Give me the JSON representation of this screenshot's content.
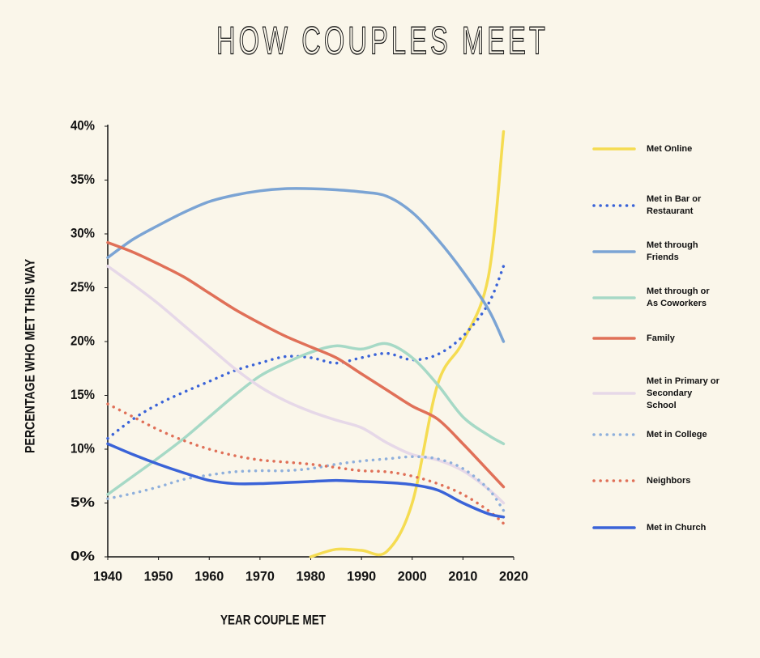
{
  "chart_data": {
    "type": "line",
    "title": "HOW COUPLES MEET",
    "x_label": "YEAR COUPLE MET",
    "y_label": "PERCENTAGE WHO MET THIS WAY",
    "x": [
      1940,
      1945,
      1950,
      1955,
      1960,
      1965,
      1970,
      1975,
      1980,
      1985,
      1990,
      1995,
      2000,
      2005,
      2010,
      2015,
      2018
    ],
    "xlim": [
      1940,
      2020
    ],
    "xticks": [
      1940,
      1950,
      1960,
      1970,
      1980,
      1990,
      2000,
      2010,
      2020
    ],
    "ylim": [
      0,
      40
    ],
    "yticks": [
      {
        "value": 0,
        "label": "0%"
      },
      {
        "value": 5,
        "label": "5%"
      },
      {
        "value": 10,
        "label": "10%"
      },
      {
        "value": 15,
        "label": "15%"
      },
      {
        "value": 20,
        "label": "20%"
      },
      {
        "value": 25,
        "label": "25%"
      },
      {
        "value": 30,
        "label": "30%"
      },
      {
        "value": 35,
        "label": "35%"
      },
      {
        "value": 40,
        "label": "40%"
      }
    ],
    "series": [
      {
        "name": "Met Online",
        "color": "#f5dc52",
        "style": "solid",
        "values": [
          null,
          null,
          null,
          null,
          null,
          null,
          null,
          null,
          0,
          0.7,
          0.6,
          0.5,
          5,
          16,
          20,
          26,
          39.5
        ]
      },
      {
        "name": "Met in Bar or Restaurant",
        "color": "#3a63d8",
        "style": "dotted",
        "values": [
          11,
          12.8,
          14.2,
          15.3,
          16.3,
          17.3,
          18,
          18.6,
          18.5,
          18,
          18.5,
          18.9,
          18.3,
          18.8,
          20.5,
          23.5,
          27
        ]
      },
      {
        "name": "Met through Friends",
        "color": "#7ba4d4",
        "style": "solid",
        "values": [
          27.8,
          29.5,
          30.8,
          32,
          33,
          33.6,
          34,
          34.2,
          34.2,
          34.1,
          33.9,
          33.5,
          32,
          29.5,
          26.5,
          23,
          20
        ]
      },
      {
        "name": "Met through or As Coworkers",
        "color": "#a6d9c6",
        "style": "solid",
        "values": [
          5.8,
          7.5,
          9.2,
          11,
          13,
          15,
          16.8,
          18,
          19,
          19.6,
          19.3,
          19.8,
          18.5,
          16,
          13,
          11.3,
          10.5
        ]
      },
      {
        "name": "Family",
        "color": "#e07058",
        "style": "solid",
        "values": [
          29.2,
          28.3,
          27.2,
          26,
          24.5,
          23,
          21.7,
          20.5,
          19.5,
          18.5,
          17,
          15.5,
          14,
          12.8,
          10.5,
          8,
          6.5
        ]
      },
      {
        "name": "Met in Primary or Secondary School",
        "color": "#e6d8e8",
        "style": "solid",
        "values": [
          27,
          25.3,
          23.5,
          21.5,
          19.5,
          17.5,
          15.8,
          14.5,
          13.5,
          12.7,
          12,
          10.6,
          9.5,
          9,
          8,
          6.3,
          5
        ]
      },
      {
        "name": "Met in College",
        "color": "#8fb0dc",
        "style": "dotted",
        "values": [
          5.4,
          5.9,
          6.5,
          7.2,
          7.6,
          7.9,
          8,
          8,
          8.2,
          8.6,
          8.9,
          9.1,
          9.3,
          9.1,
          8.2,
          6.3,
          4.3
        ]
      },
      {
        "name": "Neighbors",
        "color": "#e07058",
        "style": "dotted",
        "values": [
          14.2,
          13,
          11.8,
          10.8,
          10,
          9.4,
          9,
          8.8,
          8.6,
          8.3,
          8,
          7.9,
          7.5,
          6.8,
          5.8,
          4.3,
          3.1
        ]
      },
      {
        "name": "Met in Church",
        "color": "#3a63d8",
        "style": "solid",
        "values": [
          10.5,
          9.5,
          8.6,
          7.8,
          7.1,
          6.8,
          6.8,
          6.9,
          7,
          7.1,
          7,
          6.9,
          6.7,
          6.2,
          5,
          4,
          3.7
        ]
      }
    ]
  }
}
